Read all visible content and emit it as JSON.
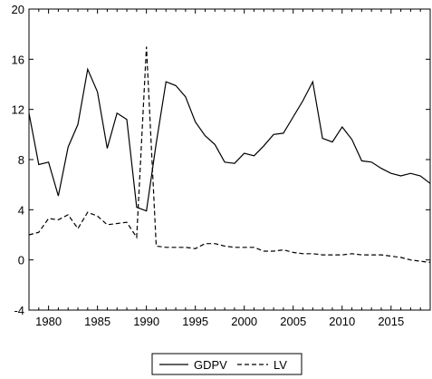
{
  "chart_data": {
    "type": "line",
    "xlim": [
      1978,
      2019
    ],
    "ylim": [
      -4,
      20
    ],
    "y_ticks": [
      -4,
      0,
      4,
      8,
      12,
      16,
      20
    ],
    "y_tick_labels": [
      "-4",
      "0",
      "4",
      "8",
      "12",
      "16",
      "20"
    ],
    "x_ticks": [
      1980,
      1985,
      1990,
      1995,
      2000,
      2005,
      2010,
      2015
    ],
    "x_tick_labels": [
      "1980",
      "1985",
      "1990",
      "1995",
      "2000",
      "2005",
      "2010",
      "2015"
    ],
    "grid": false,
    "legend_position": "bottom",
    "x": [
      1978,
      1979,
      1980,
      1981,
      1982,
      1983,
      1984,
      1985,
      1986,
      1987,
      1988,
      1989,
      1990,
      1991,
      1992,
      1993,
      1994,
      1995,
      1996,
      1997,
      1998,
      1999,
      2000,
      2001,
      2002,
      2003,
      2004,
      2005,
      2006,
      2007,
      2008,
      2009,
      2010,
      2011,
      2012,
      2013,
      2014,
      2015,
      2016,
      2017,
      2018,
      2019
    ],
    "series": [
      {
        "name": "GDPV",
        "style": "solid",
        "color": "#000000",
        "values": [
          11.7,
          7.6,
          7.8,
          5.1,
          9.0,
          10.8,
          15.2,
          13.4,
          8.9,
          11.7,
          11.2,
          4.2,
          3.9,
          9.3,
          14.2,
          13.9,
          13.0,
          11.0,
          9.9,
          9.2,
          7.8,
          7.7,
          8.5,
          8.3,
          9.1,
          10.0,
          10.1,
          11.4,
          12.7,
          14.2,
          9.7,
          9.4,
          10.6,
          9.6,
          7.9,
          7.8,
          7.3,
          6.9,
          6.7,
          6.9,
          6.7,
          6.1
        ]
      },
      {
        "name": "LV",
        "style": "dashed",
        "color": "#000000",
        "values": [
          2.0,
          2.2,
          3.3,
          3.2,
          3.6,
          2.5,
          3.8,
          3.5,
          2.8,
          2.9,
          3.0,
          1.8,
          17.0,
          1.1,
          1.0,
          1.0,
          1.0,
          0.9,
          1.3,
          1.3,
          1.1,
          1.0,
          1.0,
          1.0,
          0.7,
          0.7,
          0.8,
          0.6,
          0.5,
          0.5,
          0.4,
          0.4,
          0.4,
          0.5,
          0.4,
          0.4,
          0.4,
          0.3,
          0.2,
          0.0,
          -0.1,
          -0.2
        ]
      }
    ]
  }
}
